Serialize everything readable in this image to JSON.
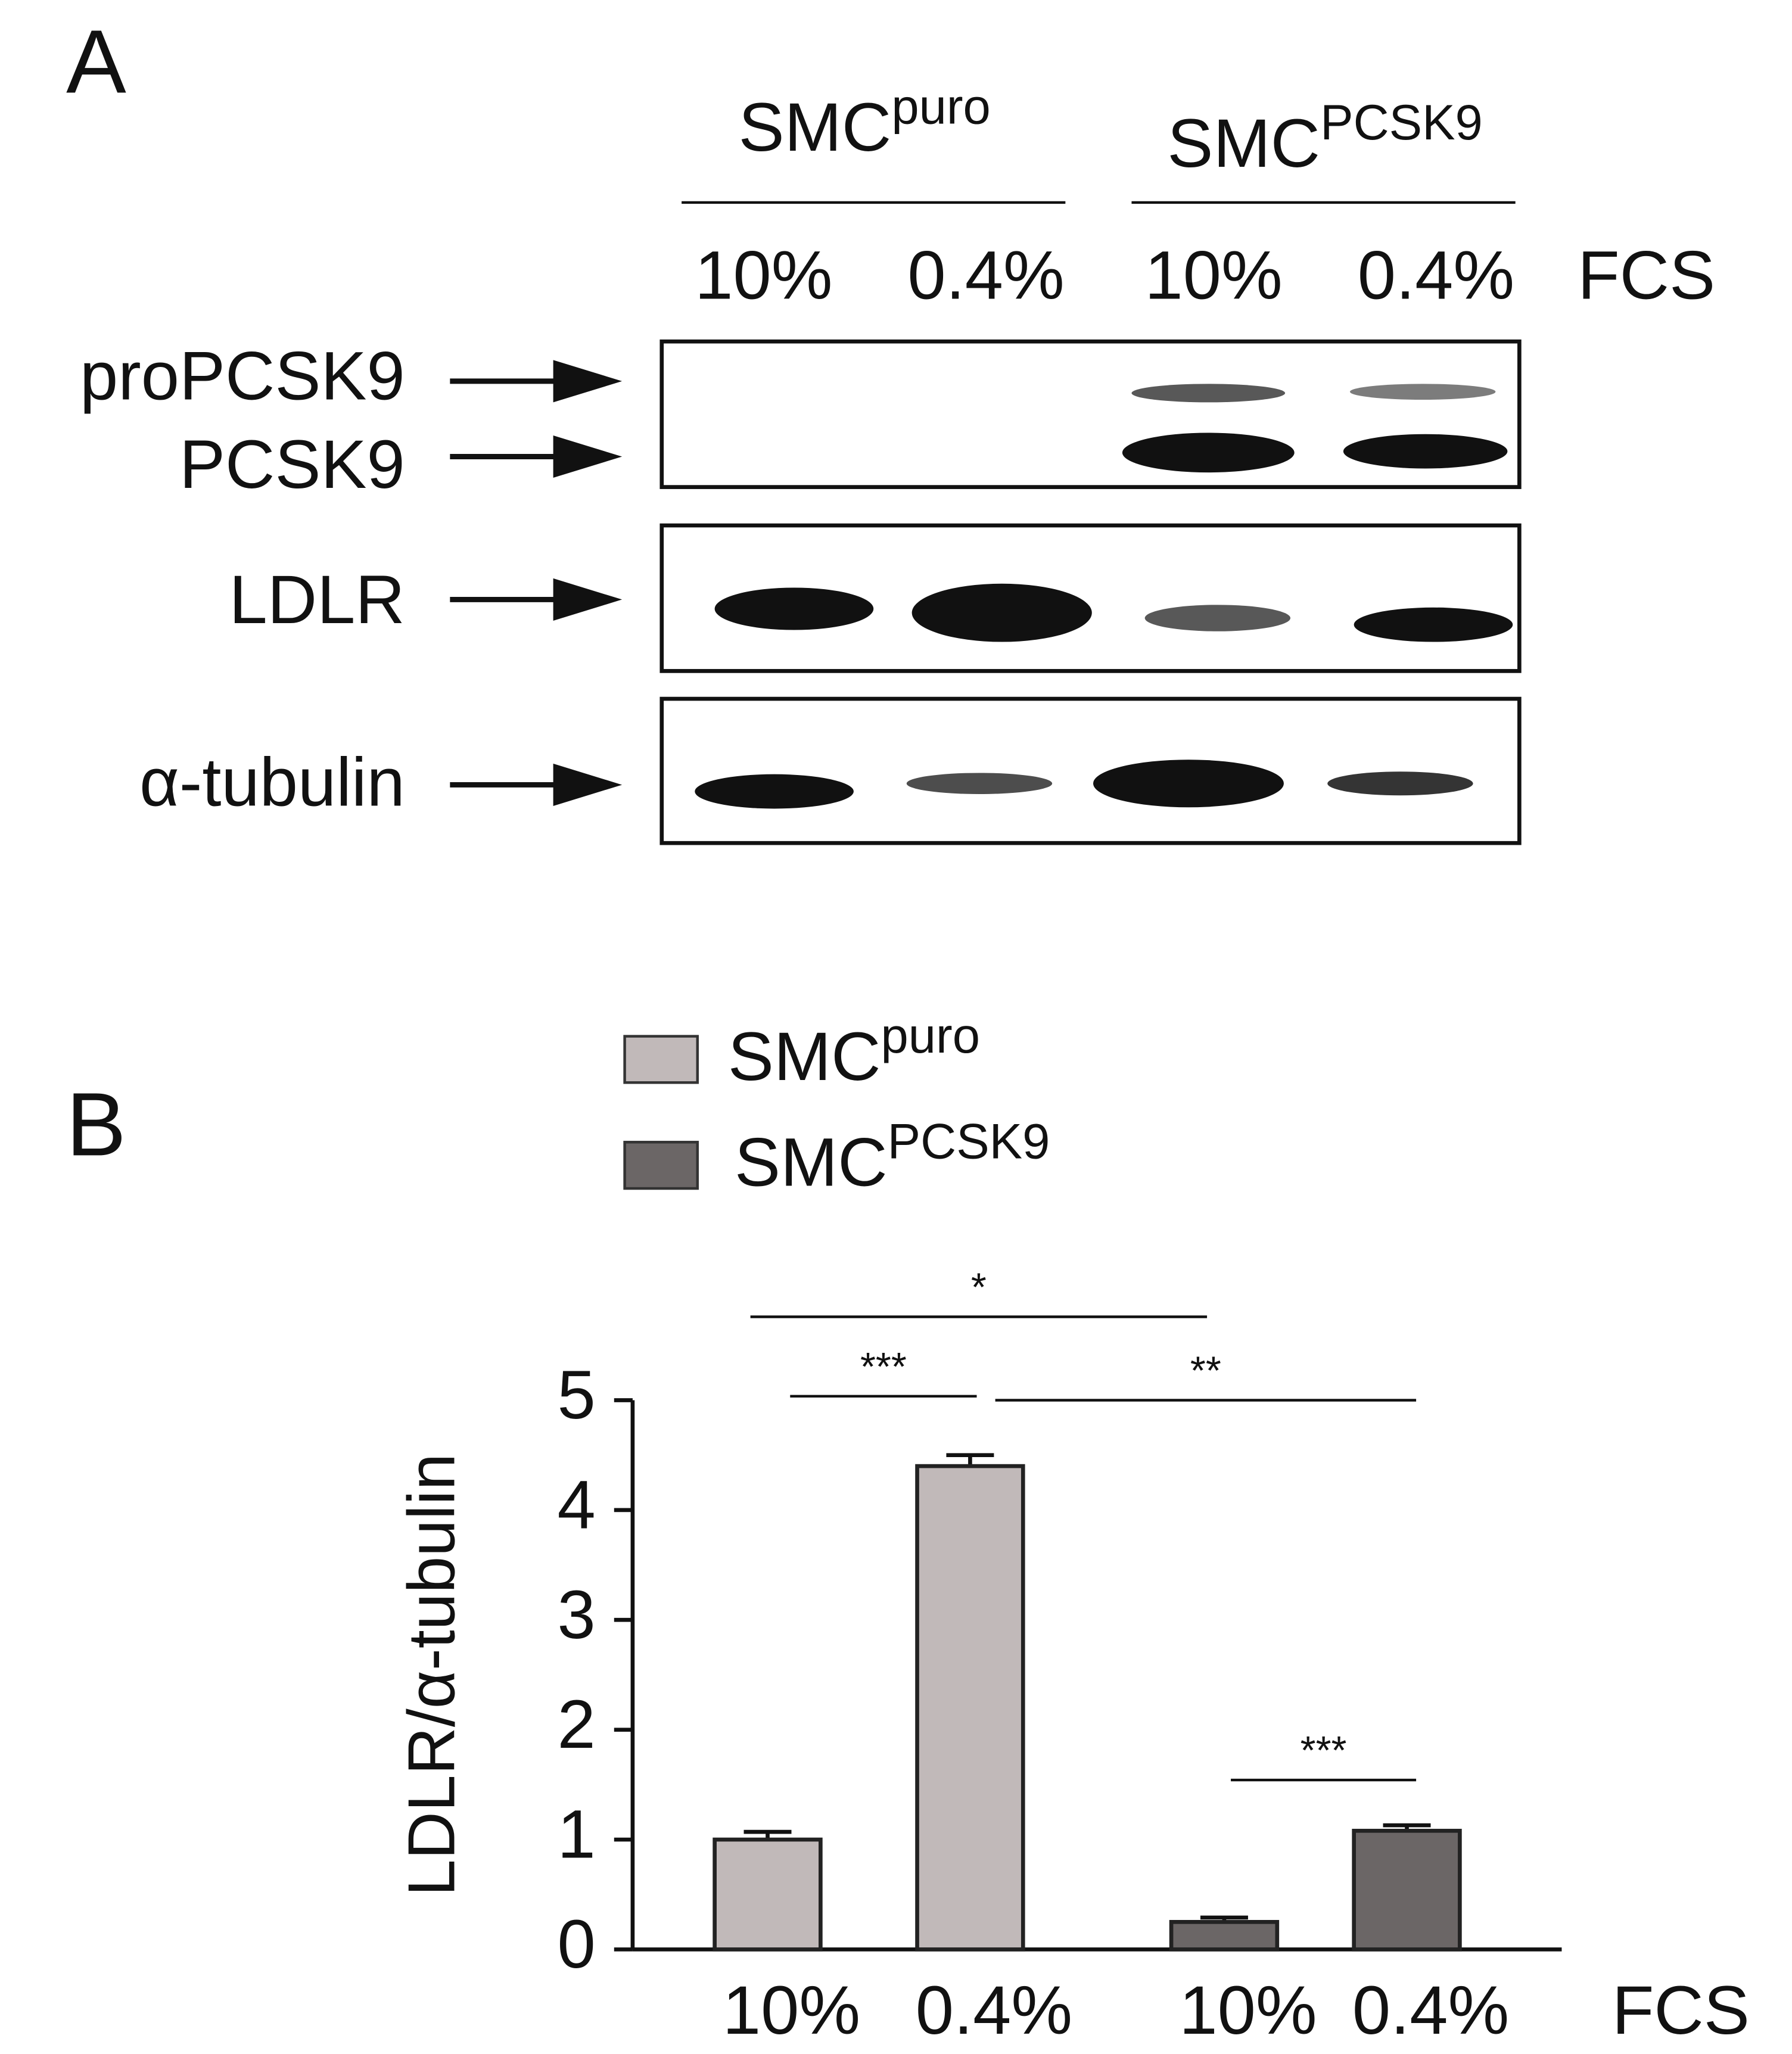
{
  "panel_a": {
    "label": "A",
    "groups": [
      {
        "name": "SMC",
        "sup": "puro"
      },
      {
        "name": "SMC",
        "sup": "PCSK9"
      }
    ],
    "lanes": [
      "10%",
      "0.4%",
      "10%",
      "0.4%"
    ],
    "lanes_unit": "FCS",
    "bands": [
      "proPCSK9",
      "PCSK9",
      "LDLR",
      "α-tubulin"
    ]
  },
  "chart_data": {
    "type": "bar",
    "label": "B",
    "ylabel": "LDLR/α-tubulin",
    "categories": [
      "10%",
      "0.4%",
      "10%",
      "0.4%"
    ],
    "xunit": "FCS",
    "series": [
      {
        "name": "SMC",
        "name_sup": "puro",
        "color": "#c1b9b9",
        "values": [
          1.0,
          4.4,
          null,
          null
        ],
        "errors": [
          0.07,
          0.1,
          null,
          null
        ]
      },
      {
        "name": "SMC",
        "name_sup": "PCSK9",
        "color": "#6b6666",
        "values": [
          null,
          null,
          0.25,
          1.08
        ],
        "errors": [
          null,
          null,
          0.04,
          0.05
        ]
      }
    ],
    "ylim": [
      0,
      5
    ],
    "yticks": [
      0,
      1,
      2,
      3,
      4,
      5
    ],
    "annotations": [
      "*",
      "***",
      "**",
      "***"
    ]
  }
}
